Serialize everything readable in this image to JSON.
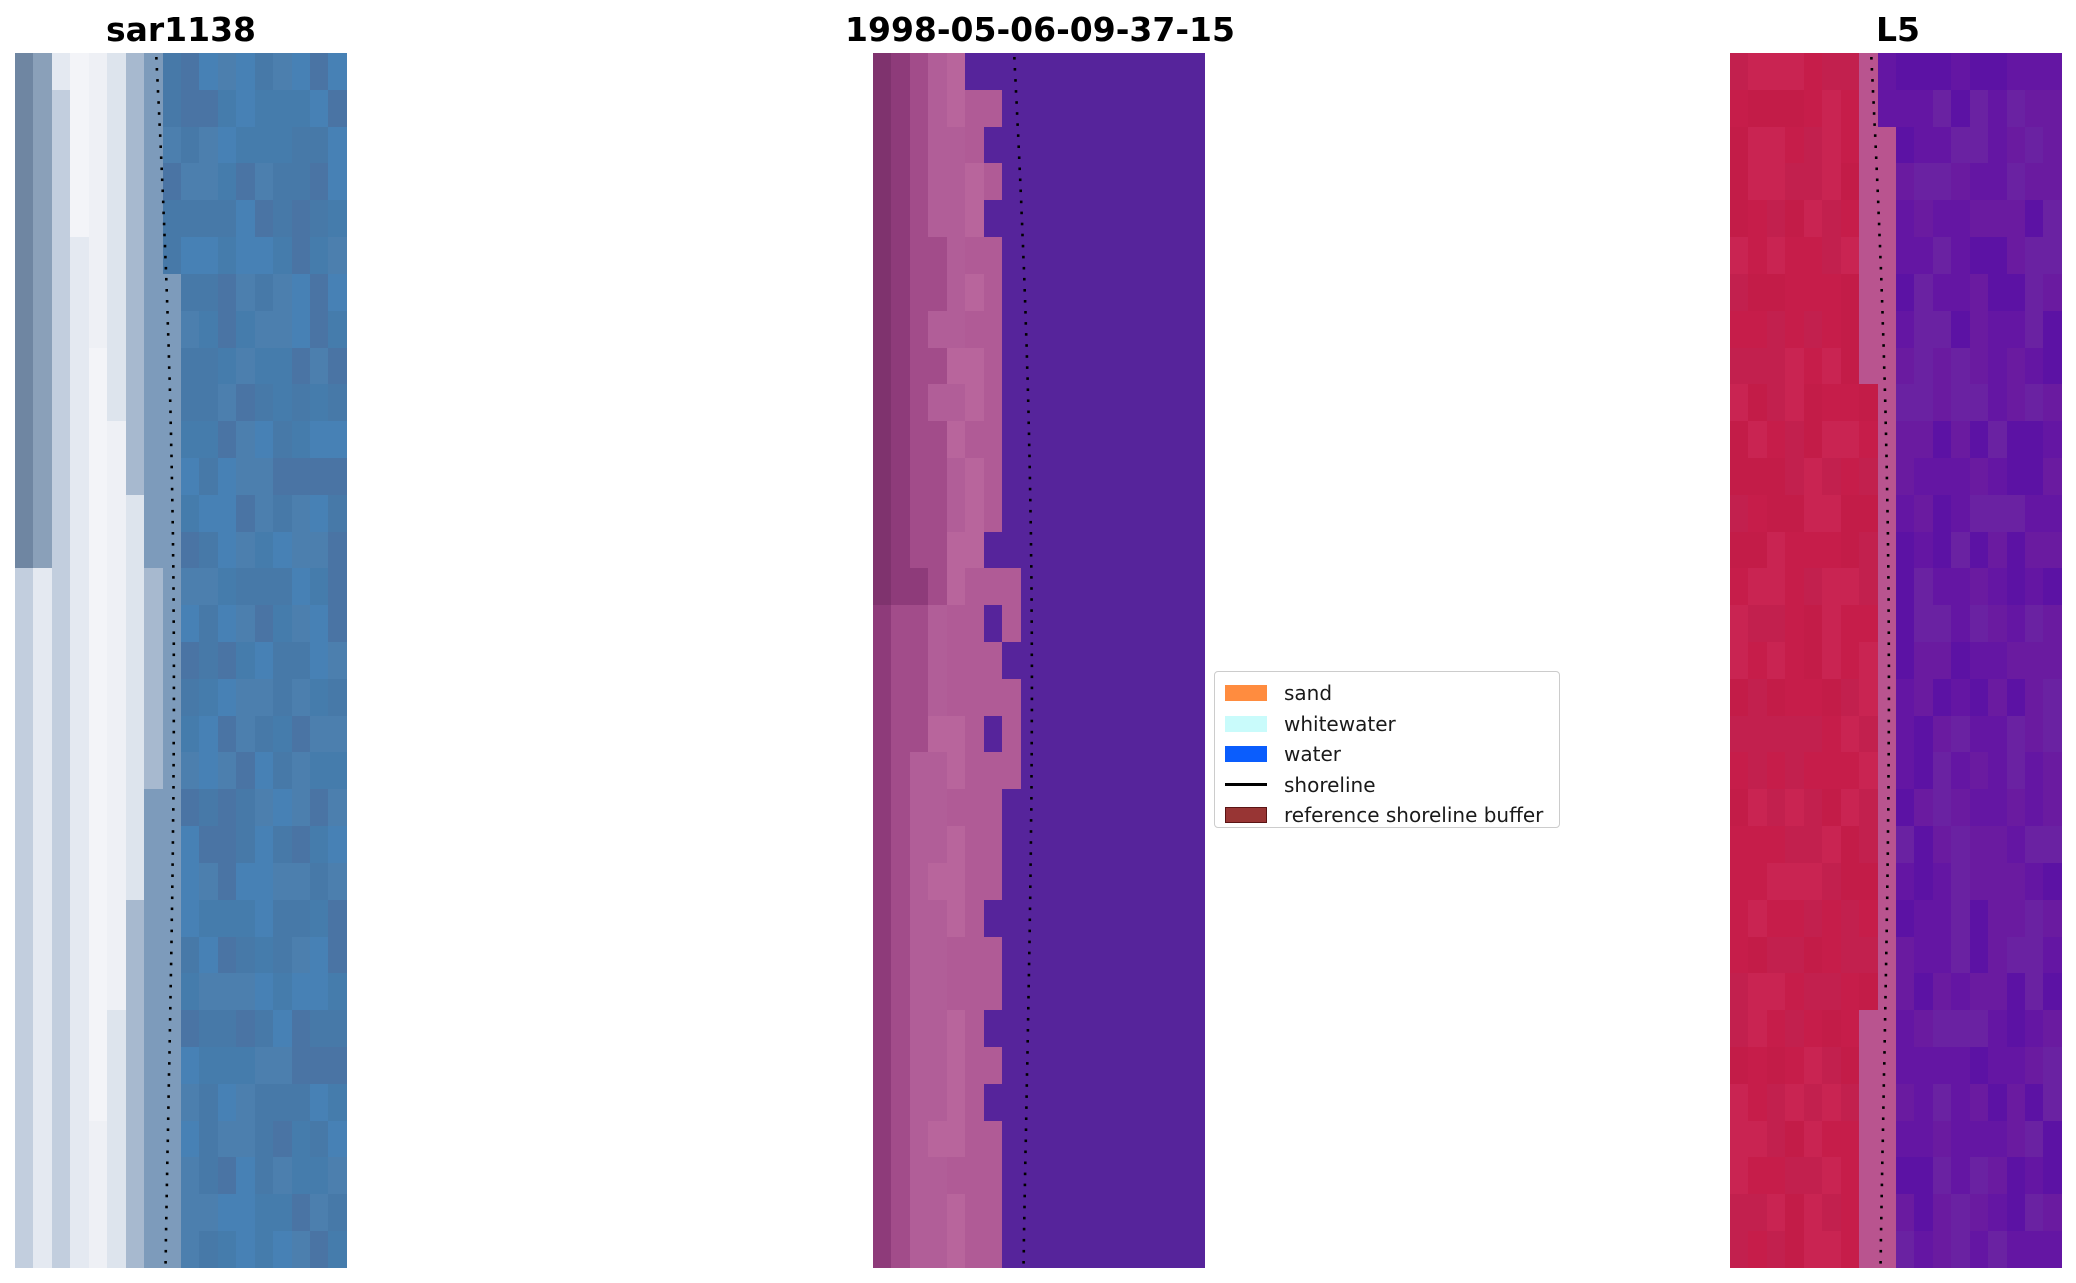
{
  "titles": {
    "left": "sar1138",
    "center": "1998-05-06-09-37-15",
    "right": "L5"
  },
  "legend": {
    "items": [
      {
        "label": "sand",
        "kind": "patch",
        "color": "#ff8c3f",
        "edge": "#ff8c3f",
        "icon": "sand-swatch-icon"
      },
      {
        "label": "whitewater",
        "kind": "patch",
        "color": "#c9fbfb",
        "edge": "#c9fbfb",
        "icon": "whitewater-swatch-icon"
      },
      {
        "label": "water",
        "kind": "patch",
        "color": "#0a5dfd",
        "edge": "#0a5dfd",
        "icon": "water-swatch-icon"
      },
      {
        "label": "shoreline",
        "kind": "line",
        "color": "#000000",
        "icon": "shoreline-line-icon"
      },
      {
        "label": "reference shoreline buffer",
        "kind": "patch",
        "color": "#983534",
        "edge": "#5a1414",
        "icon": "buffer-swatch-icon"
      }
    ]
  },
  "palettes": {
    "left": {
      "land": [
        "#6f86a2",
        "#8aa0b9",
        "#c2cede",
        "#e4e9f1",
        "#f3f4f8",
        "#eef0f5",
        "#dde4ed",
        "#a7b9cf"
      ],
      "shore": "#7d9bbb",
      "water": [
        "#4c7fae",
        "#4781b5",
        "#457cac",
        "#4779a8",
        "#4a74a4"
      ]
    },
    "center": {
      "land": [
        "#7f336e",
        "#8e3b7a",
        "#a24c8a",
        "#b15e98",
        "#b8659c",
        "#b05b96"
      ],
      "water": "#56249b"
    },
    "right": {
      "land": [
        "#c2204e",
        "#c61d4a",
        "#c31c48",
        "#c92452"
      ],
      "shore": "#b9548f",
      "water": [
        "#6a1ba0",
        "#6416a3",
        "#5c12a4",
        "#6a22a2"
      ]
    }
  },
  "colors": {
    "shoreline": "#000000",
    "background": "#ffffff"
  }
}
